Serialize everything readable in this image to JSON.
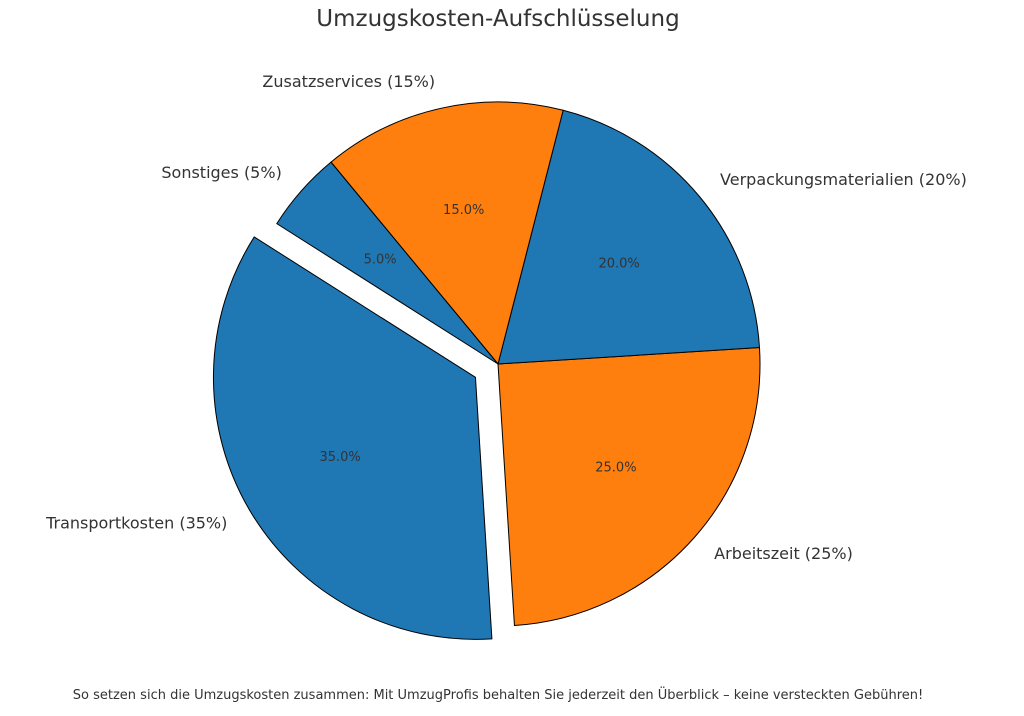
{
  "chart_data": {
    "type": "pie",
    "title": "Umzugskosten-Aufschlüsselung",
    "slices": [
      {
        "label": "Arbeitszeit (25%)",
        "value": 25,
        "pct_label": "25.0%",
        "color": "#ff7f0e",
        "exploded": false
      },
      {
        "label": "Verpackungsmaterialien (20%)",
        "value": 20,
        "pct_label": "20.0%",
        "color": "#1f77b4",
        "exploded": false
      },
      {
        "label": "Zusatzservices (15%)",
        "value": 15,
        "pct_label": "15.0%",
        "color": "#ff7f0e",
        "exploded": false
      },
      {
        "label": "Sonstiges (5%)",
        "value": 5,
        "pct_label": "5.0%",
        "color": "#1f77b4",
        "exploded": false
      },
      {
        "label": "Transportkosten (35%)",
        "value": 35,
        "pct_label": "35.0%",
        "color": "#1f77b4",
        "exploded": true
      }
    ]
  },
  "footer": {
    "caption": "So setzen sich die Umzugskosten zusammen: Mit UmzugProfis behalten Sie jederzeit den Überblick – keine versteckten Gebühren!"
  }
}
